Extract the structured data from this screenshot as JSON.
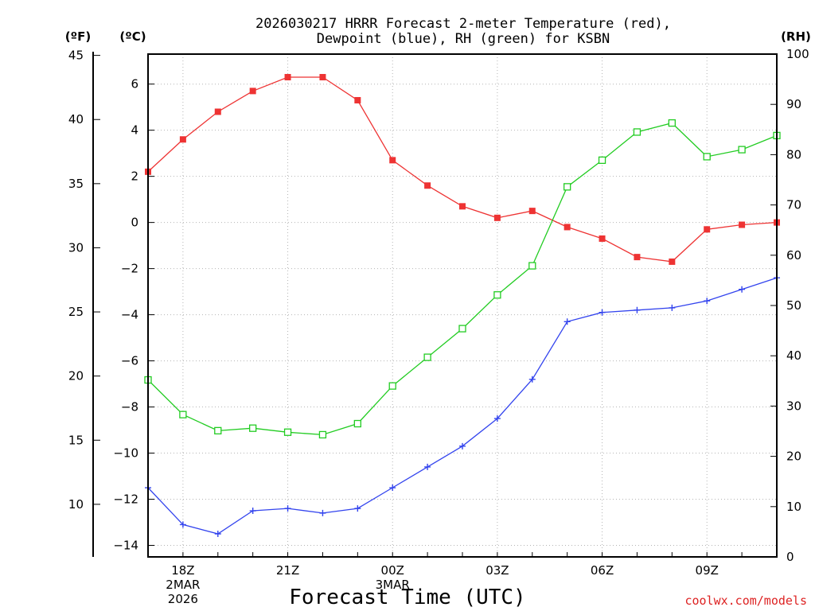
{
  "chart_data": {
    "type": "line",
    "title_line1": "2026030217 HRRR Forecast 2-meter Temperature (red),",
    "title_line2": "Dewpoint (blue), RH (green) for KSBN",
    "xlabel": "Forecast Time (UTC)",
    "credit": "coolwx.com/models",
    "units": {
      "fahrenheit": "(ºF)",
      "celsius": "(ºC)",
      "rh": "(RH)"
    },
    "x_hours": [
      17,
      18,
      19,
      20,
      21,
      22,
      23,
      24,
      25,
      26,
      27,
      28,
      29,
      30,
      31,
      32,
      33,
      34,
      35
    ],
    "xlim": [
      17,
      35
    ],
    "x_ticks": [
      {
        "hour": 18,
        "lines": [
          "18Z",
          "2MAR",
          "2026"
        ]
      },
      {
        "hour": 21,
        "lines": [
          "21Z"
        ]
      },
      {
        "hour": 24,
        "lines": [
          "00Z",
          "3MAR"
        ]
      },
      {
        "hour": 27,
        "lines": [
          "03Z"
        ]
      },
      {
        "hour": 30,
        "lines": [
          "06Z"
        ]
      },
      {
        "hour": 33,
        "lines": [
          "09Z"
        ]
      }
    ],
    "celsius_axis": {
      "range": [
        -14.5,
        7.3
      ],
      "ticks": [
        6,
        4,
        2,
        0,
        -2,
        -4,
        -6,
        -8,
        -10,
        -12,
        -14
      ]
    },
    "fahrenheit_axis": {
      "range": [
        5.9,
        45.1
      ],
      "ticks": [
        45,
        40,
        35,
        30,
        25,
        20,
        15,
        10
      ]
    },
    "rh_axis": {
      "range": [
        0,
        100
      ],
      "ticks": [
        100,
        90,
        80,
        70,
        60,
        50,
        40,
        30,
        20,
        10,
        0
      ]
    },
    "series": [
      {
        "name": "2-meter Temperature",
        "color": "#ee3333",
        "marker": "filled-square",
        "axis": "celsius",
        "values": [
          2.2,
          3.6,
          4.8,
          5.7,
          6.3,
          6.3,
          5.3,
          2.7,
          1.6,
          0.7,
          0.2,
          0.5,
          -0.2,
          -0.7,
          -1.5,
          -1.7,
          -0.3,
          -0.1,
          0.0
        ]
      },
      {
        "name": "Dewpoint",
        "color": "#3344ee",
        "marker": "plus",
        "axis": "celsius",
        "values": [
          -11.5,
          -13.1,
          -13.5,
          -12.5,
          -12.4,
          -12.6,
          -12.4,
          -11.5,
          -10.6,
          -9.7,
          -8.5,
          -6.8,
          -4.3,
          -3.9,
          -3.8,
          -3.7,
          -3.4,
          -2.9,
          -2.4
        ]
      },
      {
        "name": "RH",
        "color": "#22cc22",
        "marker": "open-square",
        "axis": "rh",
        "values": [
          35.2,
          28.3,
          25.1,
          25.6,
          24.8,
          24.3,
          26.5,
          34.0,
          39.7,
          45.4,
          52.1,
          57.9,
          73.6,
          78.9,
          84.5,
          86.3,
          79.6,
          81.0,
          83.8
        ]
      }
    ]
  }
}
